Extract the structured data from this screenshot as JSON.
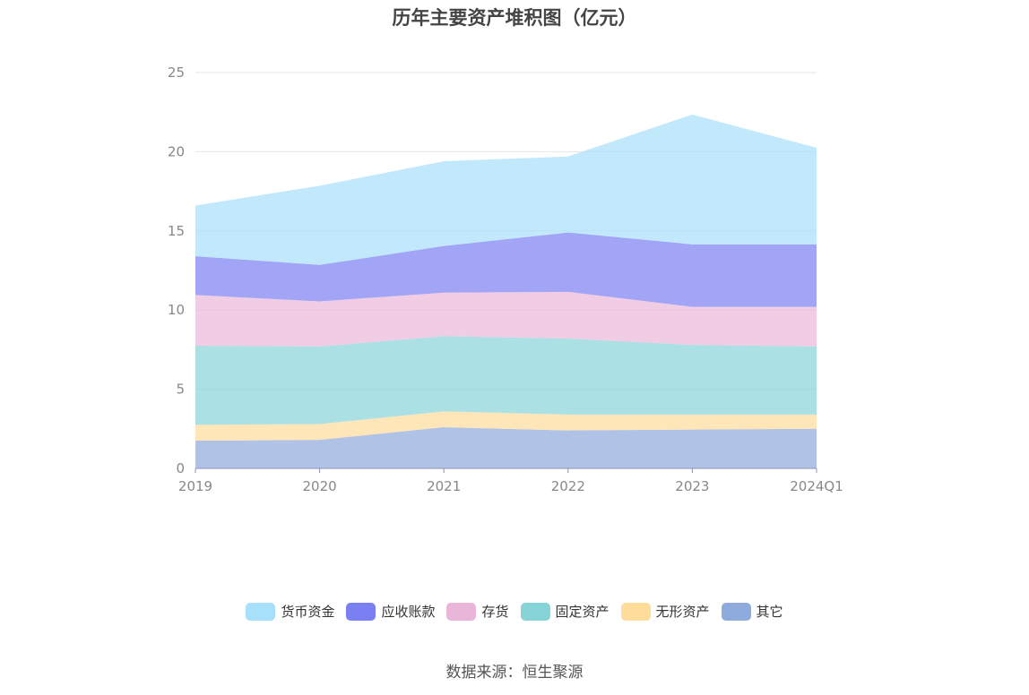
{
  "chart_data": {
    "type": "area",
    "title": "历年主要资产堆积图（亿元）",
    "categories": [
      "2019",
      "2020",
      "2021",
      "2022",
      "2023",
      "2024Q1"
    ],
    "ylim": [
      0,
      25
    ],
    "yticks": [
      0,
      5,
      10,
      15,
      20,
      25
    ],
    "stacked": true,
    "grid": true,
    "legend_position": "bottom",
    "series": [
      {
        "name": "其它",
        "values": [
          1.75,
          1.8,
          2.6,
          2.4,
          2.45,
          2.5
        ],
        "color": "#8faadc"
      },
      {
        "name": "无形资产",
        "values": [
          1.0,
          1.0,
          1.0,
          1.0,
          0.95,
          0.9
        ],
        "color": "#fedc9a"
      },
      {
        "name": "固定资产",
        "values": [
          5.0,
          4.9,
          4.75,
          4.8,
          4.4,
          4.3
        ],
        "color": "#87d4d8"
      },
      {
        "name": "存货",
        "values": [
          3.2,
          2.85,
          2.75,
          2.95,
          2.4,
          2.5
        ],
        "color": "#e9b6da"
      },
      {
        "name": "应收账款",
        "values": [
          2.45,
          2.3,
          2.95,
          3.75,
          3.95,
          3.95
        ],
        "color": "#7a7ff2"
      },
      {
        "name": "货币资金",
        "values": [
          3.2,
          5.0,
          5.35,
          4.8,
          8.2,
          6.1
        ],
        "color": "#a6e0fa"
      }
    ]
  },
  "legend_order": [
    "货币资金",
    "应收账款",
    "存货",
    "固定资产",
    "无形资产",
    "其它"
  ],
  "source": "数据来源：恒生聚源"
}
